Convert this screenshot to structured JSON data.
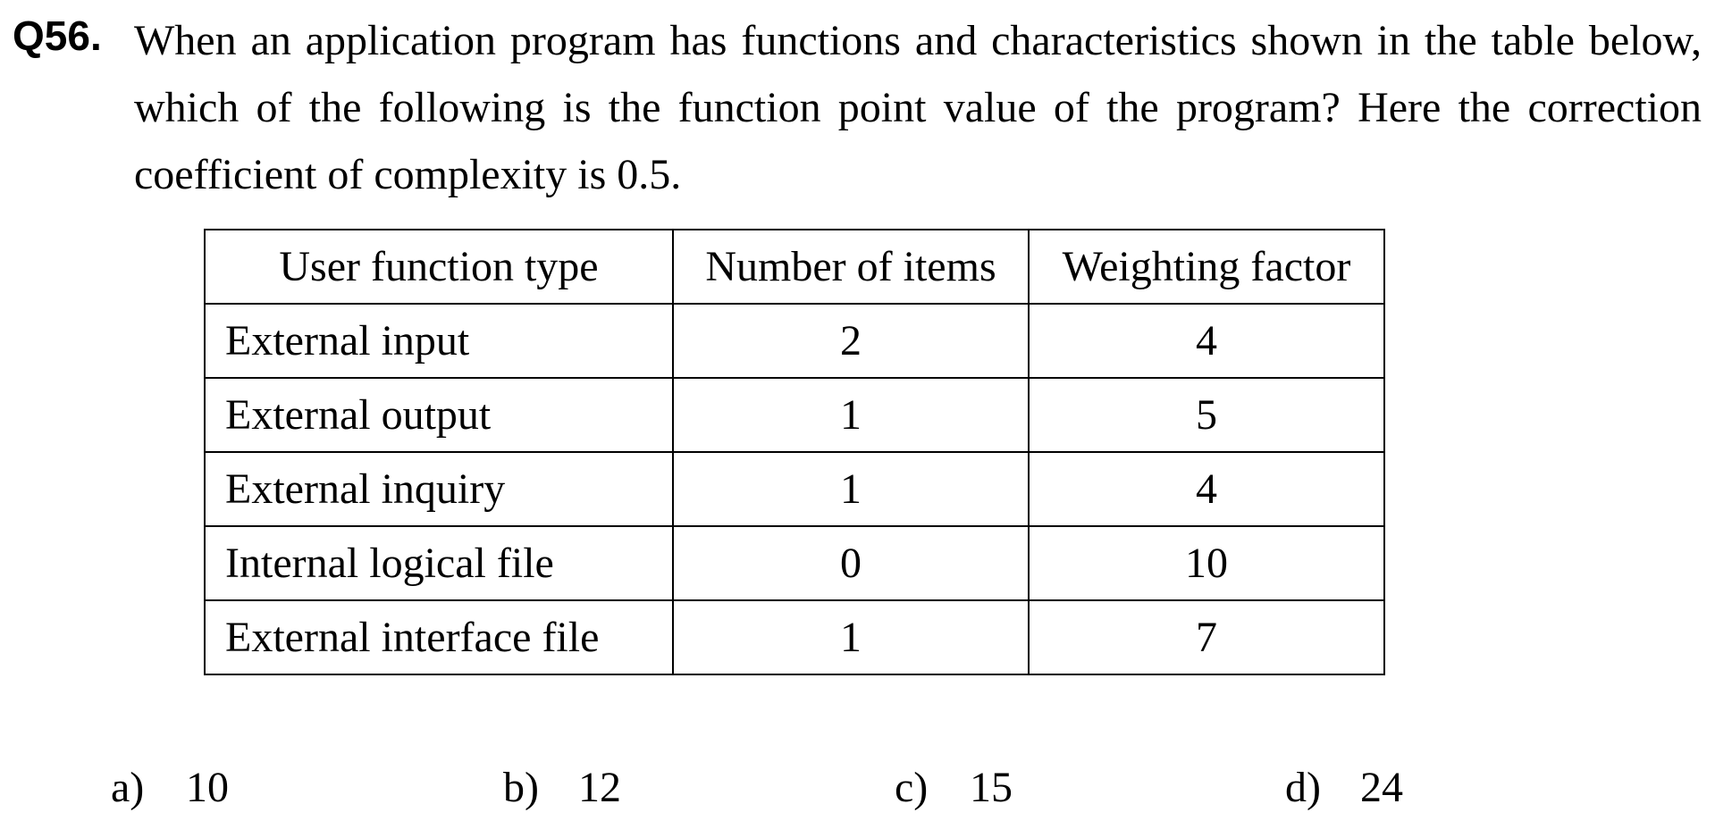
{
  "question": {
    "number": "Q56.",
    "text": "When an application program has functions and characteristics shown in the table below, which of the following is the function point value of the program?   Here the correction coefficient of complexity is 0.5."
  },
  "table": {
    "headers": [
      "User function type",
      "Number of items",
      "Weighting factor"
    ],
    "rows": [
      [
        "External input",
        "2",
        "4"
      ],
      [
        "External output",
        "1",
        "5"
      ],
      [
        "External inquiry",
        "1",
        "4"
      ],
      [
        "Internal logical file",
        "0",
        "10"
      ],
      [
        "External interface file",
        "1",
        "7"
      ]
    ]
  },
  "options": [
    {
      "label": "a)",
      "value": "10"
    },
    {
      "label": "b)",
      "value": "12"
    },
    {
      "label": "c)",
      "value": "15"
    },
    {
      "label": "d)",
      "value": "24"
    }
  ]
}
